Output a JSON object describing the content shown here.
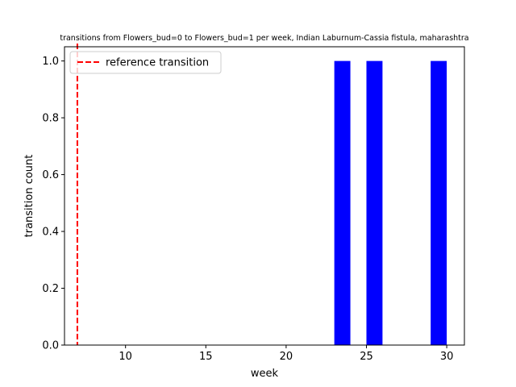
{
  "chart_data": {
    "type": "bar",
    "title": "transitions from Flowers_bud=0 to Flowers_bud=1 per week, Indian Laburnum-Cassia fistula, maharashtra",
    "xlabel": "week",
    "ylabel": "transition count",
    "xlim": [
      6.2,
      31.1
    ],
    "ylim": [
      0,
      1.05
    ],
    "xticks": [
      10,
      15,
      20,
      25,
      30
    ],
    "yticks": [
      0.0,
      0.2,
      0.4,
      0.6,
      0.8,
      1.0
    ],
    "bar_color": "#0000ff",
    "bars": [
      {
        "x_start": 23,
        "x_end": 24,
        "value": 1
      },
      {
        "x_start": 25,
        "x_end": 26,
        "value": 1
      },
      {
        "x_start": 29,
        "x_end": 30,
        "value": 1
      }
    ],
    "reference_line": {
      "x": 7,
      "label": "reference transition",
      "color": "#ff0000",
      "style": "dashed"
    },
    "legend": {
      "placement": "upper-left",
      "entries": [
        "reference transition"
      ]
    },
    "grid": false
  }
}
